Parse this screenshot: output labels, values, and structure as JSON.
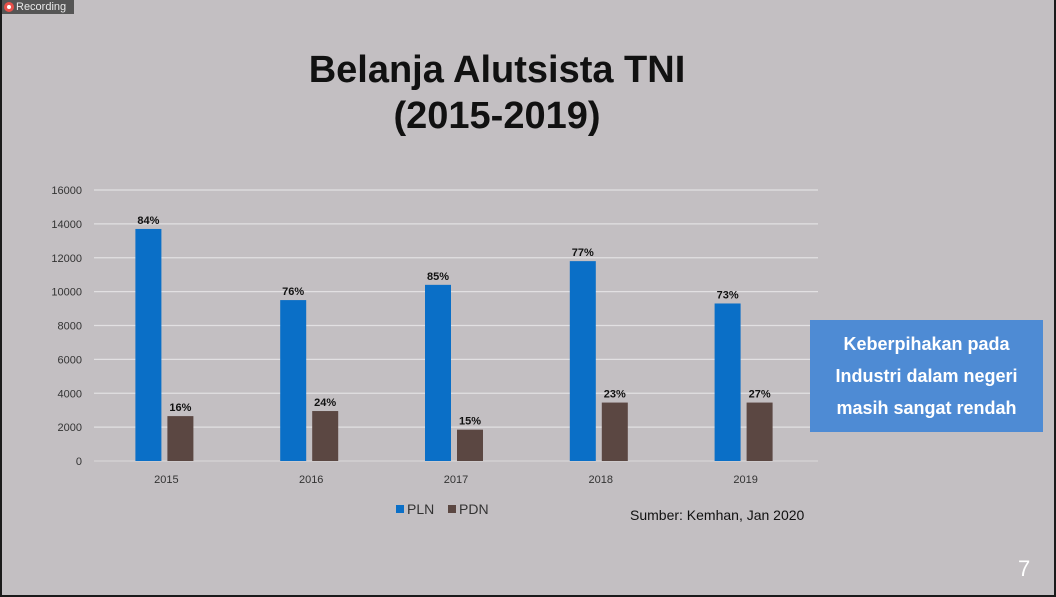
{
  "recording_label": "Recording",
  "title_line1": "Belanja Alutsista TNI",
  "title_line2": "(2015-2019)",
  "callout": {
    "line1": "Keberpihakan pada",
    "line2": "Industri dalam negeri",
    "line3": "masih sangat rendah"
  },
  "source": "Sumber: Kemhan, Jan 2020",
  "page_number": "7",
  "colors": {
    "pln": "#0a6fc7",
    "pdn": "#5b4742",
    "callout": "#4e8bd4"
  },
  "chart_data": {
    "type": "bar",
    "categories": [
      "2015",
      "2016",
      "2017",
      "2018",
      "2019"
    ],
    "series": [
      {
        "name": "PLN",
        "values": [
          13700,
          9500,
          10400,
          11800,
          9300
        ],
        "labels": [
          "84%",
          "76%",
          "85%",
          "77%",
          "73%"
        ]
      },
      {
        "name": "PDN",
        "values": [
          2650,
          2950,
          1850,
          3450,
          3450
        ],
        "labels": [
          "16%",
          "24%",
          "15%",
          "23%",
          "27%"
        ]
      }
    ],
    "ylim": [
      0,
      16000
    ],
    "yticks": [
      0,
      2000,
      4000,
      6000,
      8000,
      10000,
      12000,
      14000,
      16000
    ],
    "legend": "bottom-center",
    "grid": true
  }
}
